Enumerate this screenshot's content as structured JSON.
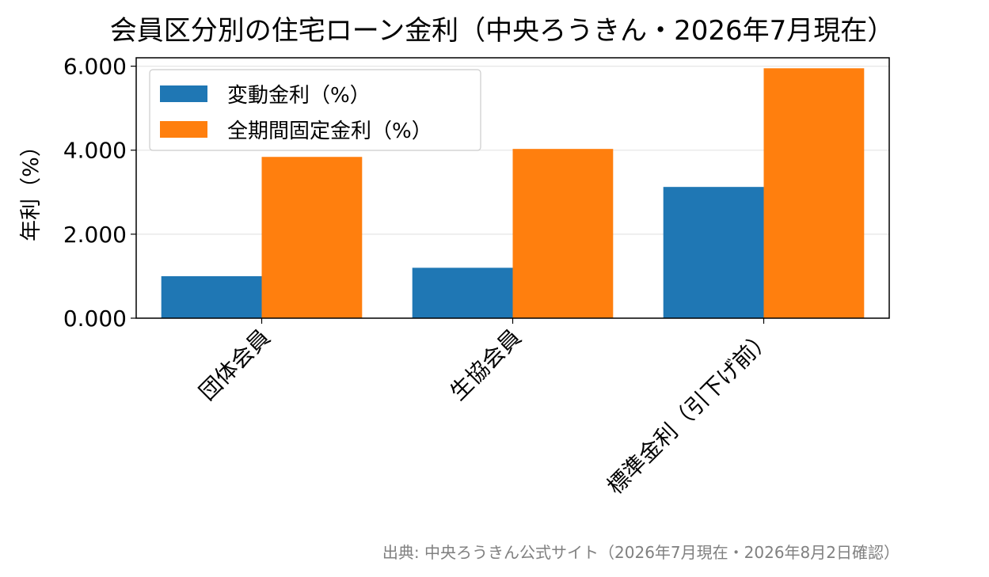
{
  "chart_data": {
    "type": "bar",
    "title": "会員区分別の住宅ローン金利（中央ろうきん・2026年7月現在）",
    "ylabel": "年利（%）",
    "xlabel": "",
    "categories": [
      "団体会員",
      "生協会員",
      "標準金利（引下げ前）"
    ],
    "series": [
      {
        "name": "変動金利（%）",
        "color": "#1f77b4",
        "values": [
          1.0,
          1.2,
          3.125
        ]
      },
      {
        "name": "全期間固定金利（%）",
        "color": "#ff7f0e",
        "values": [
          3.84,
          4.03,
          5.95
        ]
      }
    ],
    "ylim": [
      0,
      6.2
    ],
    "yticks": [
      0,
      2,
      4,
      6
    ],
    "ytick_labels": [
      "0.000",
      "2.000",
      "4.000",
      "6.000"
    ],
    "grid": "y",
    "legend_position": "upper-left",
    "source_note": "出典: 中央ろうきん公式サイト（2026年7月現在・2026年8月2日確認）"
  }
}
